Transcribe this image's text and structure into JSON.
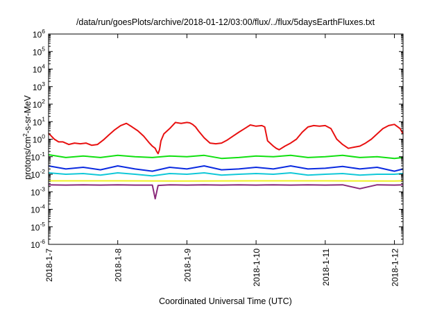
{
  "chart_data": {
    "type": "line",
    "title": "/data/run/goesPlots/archive/2018-01-12/03:00/flux/../flux/5daysEarthFluxes.txt",
    "xlabel": "Coordinated Universal Time (UTC)",
    "ylabel": "protons/cm²-s-sr-MeV",
    "ylabel_parts": {
      "before": "protons/cm",
      "sup": "2",
      "after": "-s-sr-MeV"
    },
    "yscale": "log",
    "ylim": [
      1e-06,
      1000000.0
    ],
    "xlim": [
      "2018-01-07 00:00",
      "2018-01-12 03:00"
    ],
    "grid": false,
    "legend": "none",
    "y_ticks": [
      {
        "value": 1e-06,
        "mant": "10",
        "exp": "-6"
      },
      {
        "value": 1e-05,
        "mant": "10",
        "exp": "-5"
      },
      {
        "value": 0.0001,
        "mant": "10",
        "exp": "-4"
      },
      {
        "value": 0.001,
        "mant": "10",
        "exp": "-3"
      },
      {
        "value": 0.01,
        "mant": "10",
        "exp": "-2"
      },
      {
        "value": 0.1,
        "mant": "10",
        "exp": "-1"
      },
      {
        "value": 1,
        "mant": "10",
        "exp": "0"
      },
      {
        "value": 10,
        "mant": "10",
        "exp": "1"
      },
      {
        "value": 100,
        "mant": "10",
        "exp": "2"
      },
      {
        "value": 1000,
        "mant": "10",
        "exp": "3"
      },
      {
        "value": 10000,
        "mant": "10",
        "exp": "4"
      },
      {
        "value": 100000,
        "mant": "10",
        "exp": "5"
      },
      {
        "value": 1000000,
        "mant": "10",
        "exp": "6"
      }
    ],
    "x_ticks": [
      {
        "date": "2018-01-07 00:00",
        "label": "2018-1-7"
      },
      {
        "date": "2018-01-08 00:00",
        "label": "2018-1-8"
      },
      {
        "date": "2018-01-09 00:00",
        "label": "2018-1-9"
      },
      {
        "date": "2018-01-10 00:00",
        "label": "2018-1-10"
      },
      {
        "date": "2018-01-11 00:00",
        "label": "2018-1-11"
      },
      {
        "date": "2018-01-12 00:00",
        "label": "2018-1-12"
      }
    ],
    "series": [
      {
        "color": "#e81010",
        "x": [
          "2018-01-07 00:00",
          "2018-01-07 02:00",
          "2018-01-07 03:30",
          "2018-01-07 05:00",
          "2018-01-07 07:00",
          "2018-01-07 09:00",
          "2018-01-07 11:00",
          "2018-01-07 13:00",
          "2018-01-07 15:00",
          "2018-01-07 17:00",
          "2018-01-07 19:00",
          "2018-01-07 21:00",
          "2018-01-07 23:00",
          "2018-01-08 01:00",
          "2018-01-08 03:00",
          "2018-01-08 05:00",
          "2018-01-08 07:00",
          "2018-01-08 09:00",
          "2018-01-08 11:00",
          "2018-01-08 12:00",
          "2018-01-08 13:00",
          "2018-01-08 13:30",
          "2018-01-08 14:00",
          "2018-01-08 14:30",
          "2018-01-08 15:00",
          "2018-01-08 16:00",
          "2018-01-08 18:00",
          "2018-01-08 20:00",
          "2018-01-08 22:00",
          "2018-01-09 00:00",
          "2018-01-09 01:00",
          "2018-01-09 02:00",
          "2018-01-09 03:00",
          "2018-01-09 04:00",
          "2018-01-09 06:00",
          "2018-01-09 08:00",
          "2018-01-09 10:00",
          "2018-01-09 12:00",
          "2018-01-09 14:00",
          "2018-01-09 16:00",
          "2018-01-09 18:00",
          "2018-01-09 20:00",
          "2018-01-09 22:00",
          "2018-01-10 00:00",
          "2018-01-10 02:00",
          "2018-01-10 03:00",
          "2018-01-10 04:00",
          "2018-01-10 06:00",
          "2018-01-10 07:00",
          "2018-01-10 08:00",
          "2018-01-10 10:00",
          "2018-01-10 12:00",
          "2018-01-10 14:00",
          "2018-01-10 16:00",
          "2018-01-10 18:00",
          "2018-01-10 20:00",
          "2018-01-10 22:00",
          "2018-01-11 00:00",
          "2018-01-11 02:00",
          "2018-01-11 04:00",
          "2018-01-11 06:00",
          "2018-01-11 08:00",
          "2018-01-11 10:00",
          "2018-01-11 12:00",
          "2018-01-11 14:00",
          "2018-01-11 16:00",
          "2018-01-11 18:00",
          "2018-01-11 20:00",
          "2018-01-11 22:00",
          "2018-01-12 00:00",
          "2018-01-12 02:00",
          "2018-01-12 03:00"
        ],
        "y": [
          2.2,
          1.0,
          0.7,
          0.7,
          0.5,
          0.6,
          0.55,
          0.6,
          0.45,
          0.5,
          0.9,
          1.8,
          3.5,
          6.0,
          8.0,
          5.0,
          3.0,
          1.5,
          0.6,
          0.4,
          0.3,
          0.2,
          0.15,
          0.25,
          0.8,
          2.0,
          4.0,
          9.0,
          8.0,
          9.0,
          8.5,
          7.0,
          5.0,
          3.0,
          1.2,
          0.6,
          0.55,
          0.6,
          0.9,
          1.5,
          2.5,
          4.0,
          6.5,
          5.5,
          6.0,
          5.0,
          0.8,
          0.4,
          0.3,
          0.25,
          0.4,
          0.6,
          1.0,
          2.5,
          5.0,
          6.0,
          5.5,
          6.0,
          4.0,
          1.0,
          0.5,
          0.3,
          0.35,
          0.4,
          0.6,
          1.0,
          2.0,
          4.0,
          6.0,
          7.0,
          4.0,
          2.0
        ]
      },
      {
        "color": "#10e010",
        "x": [
          "2018-01-07 00:00",
          "2018-01-07 06:00",
          "2018-01-07 12:00",
          "2018-01-07 18:00",
          "2018-01-08 00:00",
          "2018-01-08 06:00",
          "2018-01-08 12:00",
          "2018-01-08 18:00",
          "2018-01-09 00:00",
          "2018-01-09 06:00",
          "2018-01-09 12:00",
          "2018-01-09 18:00",
          "2018-01-10 00:00",
          "2018-01-10 06:00",
          "2018-01-10 12:00",
          "2018-01-10 18:00",
          "2018-01-11 00:00",
          "2018-01-11 06:00",
          "2018-01-11 12:00",
          "2018-01-11 18:00",
          "2018-01-12 00:00",
          "2018-01-12 03:00"
        ],
        "y": [
          0.13,
          0.09,
          0.11,
          0.09,
          0.12,
          0.1,
          0.09,
          0.11,
          0.1,
          0.12,
          0.08,
          0.09,
          0.11,
          0.1,
          0.12,
          0.09,
          0.1,
          0.12,
          0.09,
          0.1,
          0.08,
          0.09
        ]
      },
      {
        "color": "#0a2ae0",
        "x": [
          "2018-01-07 00:00",
          "2018-01-07 06:00",
          "2018-01-07 12:00",
          "2018-01-07 18:00",
          "2018-01-08 00:00",
          "2018-01-08 06:00",
          "2018-01-08 12:00",
          "2018-01-08 18:00",
          "2018-01-09 00:00",
          "2018-01-09 06:00",
          "2018-01-09 12:00",
          "2018-01-09 18:00",
          "2018-01-10 00:00",
          "2018-01-10 06:00",
          "2018-01-10 12:00",
          "2018-01-10 18:00",
          "2018-01-11 00:00",
          "2018-01-11 06:00",
          "2018-01-11 12:00",
          "2018-01-11 18:00",
          "2018-01-12 00:00",
          "2018-01-12 03:00"
        ],
        "y": [
          0.03,
          0.02,
          0.025,
          0.018,
          0.03,
          0.02,
          0.015,
          0.025,
          0.02,
          0.03,
          0.018,
          0.02,
          0.025,
          0.02,
          0.03,
          0.02,
          0.022,
          0.028,
          0.02,
          0.025,
          0.015,
          0.02
        ]
      },
      {
        "color": "#10c8d8",
        "x": [
          "2018-01-07 00:00",
          "2018-01-07 06:00",
          "2018-01-07 12:00",
          "2018-01-07 18:00",
          "2018-01-08 00:00",
          "2018-01-08 06:00",
          "2018-01-08 12:00",
          "2018-01-08 18:00",
          "2018-01-09 00:00",
          "2018-01-09 06:00",
          "2018-01-09 12:00",
          "2018-01-09 18:00",
          "2018-01-10 00:00",
          "2018-01-10 06:00",
          "2018-01-10 12:00",
          "2018-01-10 18:00",
          "2018-01-11 00:00",
          "2018-01-11 06:00",
          "2018-01-11 12:00",
          "2018-01-11 18:00",
          "2018-01-12 00:00",
          "2018-01-12 03:00"
        ],
        "y": [
          0.012,
          0.01,
          0.011,
          0.009,
          0.012,
          0.01,
          0.008,
          0.011,
          0.01,
          0.012,
          0.009,
          0.01,
          0.011,
          0.01,
          0.012,
          0.009,
          0.01,
          0.011,
          0.009,
          0.01,
          0.01,
          0.011
        ]
      },
      {
        "color": "#f0f020",
        "x": [
          "2018-01-07 00:00",
          "2018-01-08 00:00",
          "2018-01-09 00:00",
          "2018-01-10 00:00",
          "2018-01-11 00:00",
          "2018-01-12 00:00",
          "2018-01-12 03:00"
        ],
        "y": [
          0.0042,
          0.0042,
          0.0041,
          0.0042,
          0.0042,
          0.0041,
          0.0042
        ]
      },
      {
        "color": "#8a2a7a",
        "x": [
          "2018-01-07 00:00",
          "2018-01-07 06:00",
          "2018-01-07 12:00",
          "2018-01-07 18:00",
          "2018-01-08 00:00",
          "2018-01-08 06:00",
          "2018-01-08 12:00",
          "2018-01-08 13:00",
          "2018-01-08 14:00",
          "2018-01-08 18:00",
          "2018-01-09 00:00",
          "2018-01-09 06:00",
          "2018-01-09 12:00",
          "2018-01-09 18:00",
          "2018-01-10 00:00",
          "2018-01-10 06:00",
          "2018-01-10 12:00",
          "2018-01-10 18:00",
          "2018-01-11 00:00",
          "2018-01-11 06:00",
          "2018-01-11 12:00",
          "2018-01-11 18:00",
          "2018-01-12 00:00",
          "2018-01-12 03:00"
        ],
        "y": [
          0.0025,
          0.0024,
          0.0025,
          0.0024,
          0.0025,
          0.0024,
          0.0024,
          0.0004,
          0.0023,
          0.0025,
          0.0024,
          0.0025,
          0.0024,
          0.0025,
          0.0024,
          0.0025,
          0.0024,
          0.0025,
          0.0024,
          0.0025,
          0.0015,
          0.0025,
          0.0024,
          0.0025
        ]
      }
    ]
  }
}
